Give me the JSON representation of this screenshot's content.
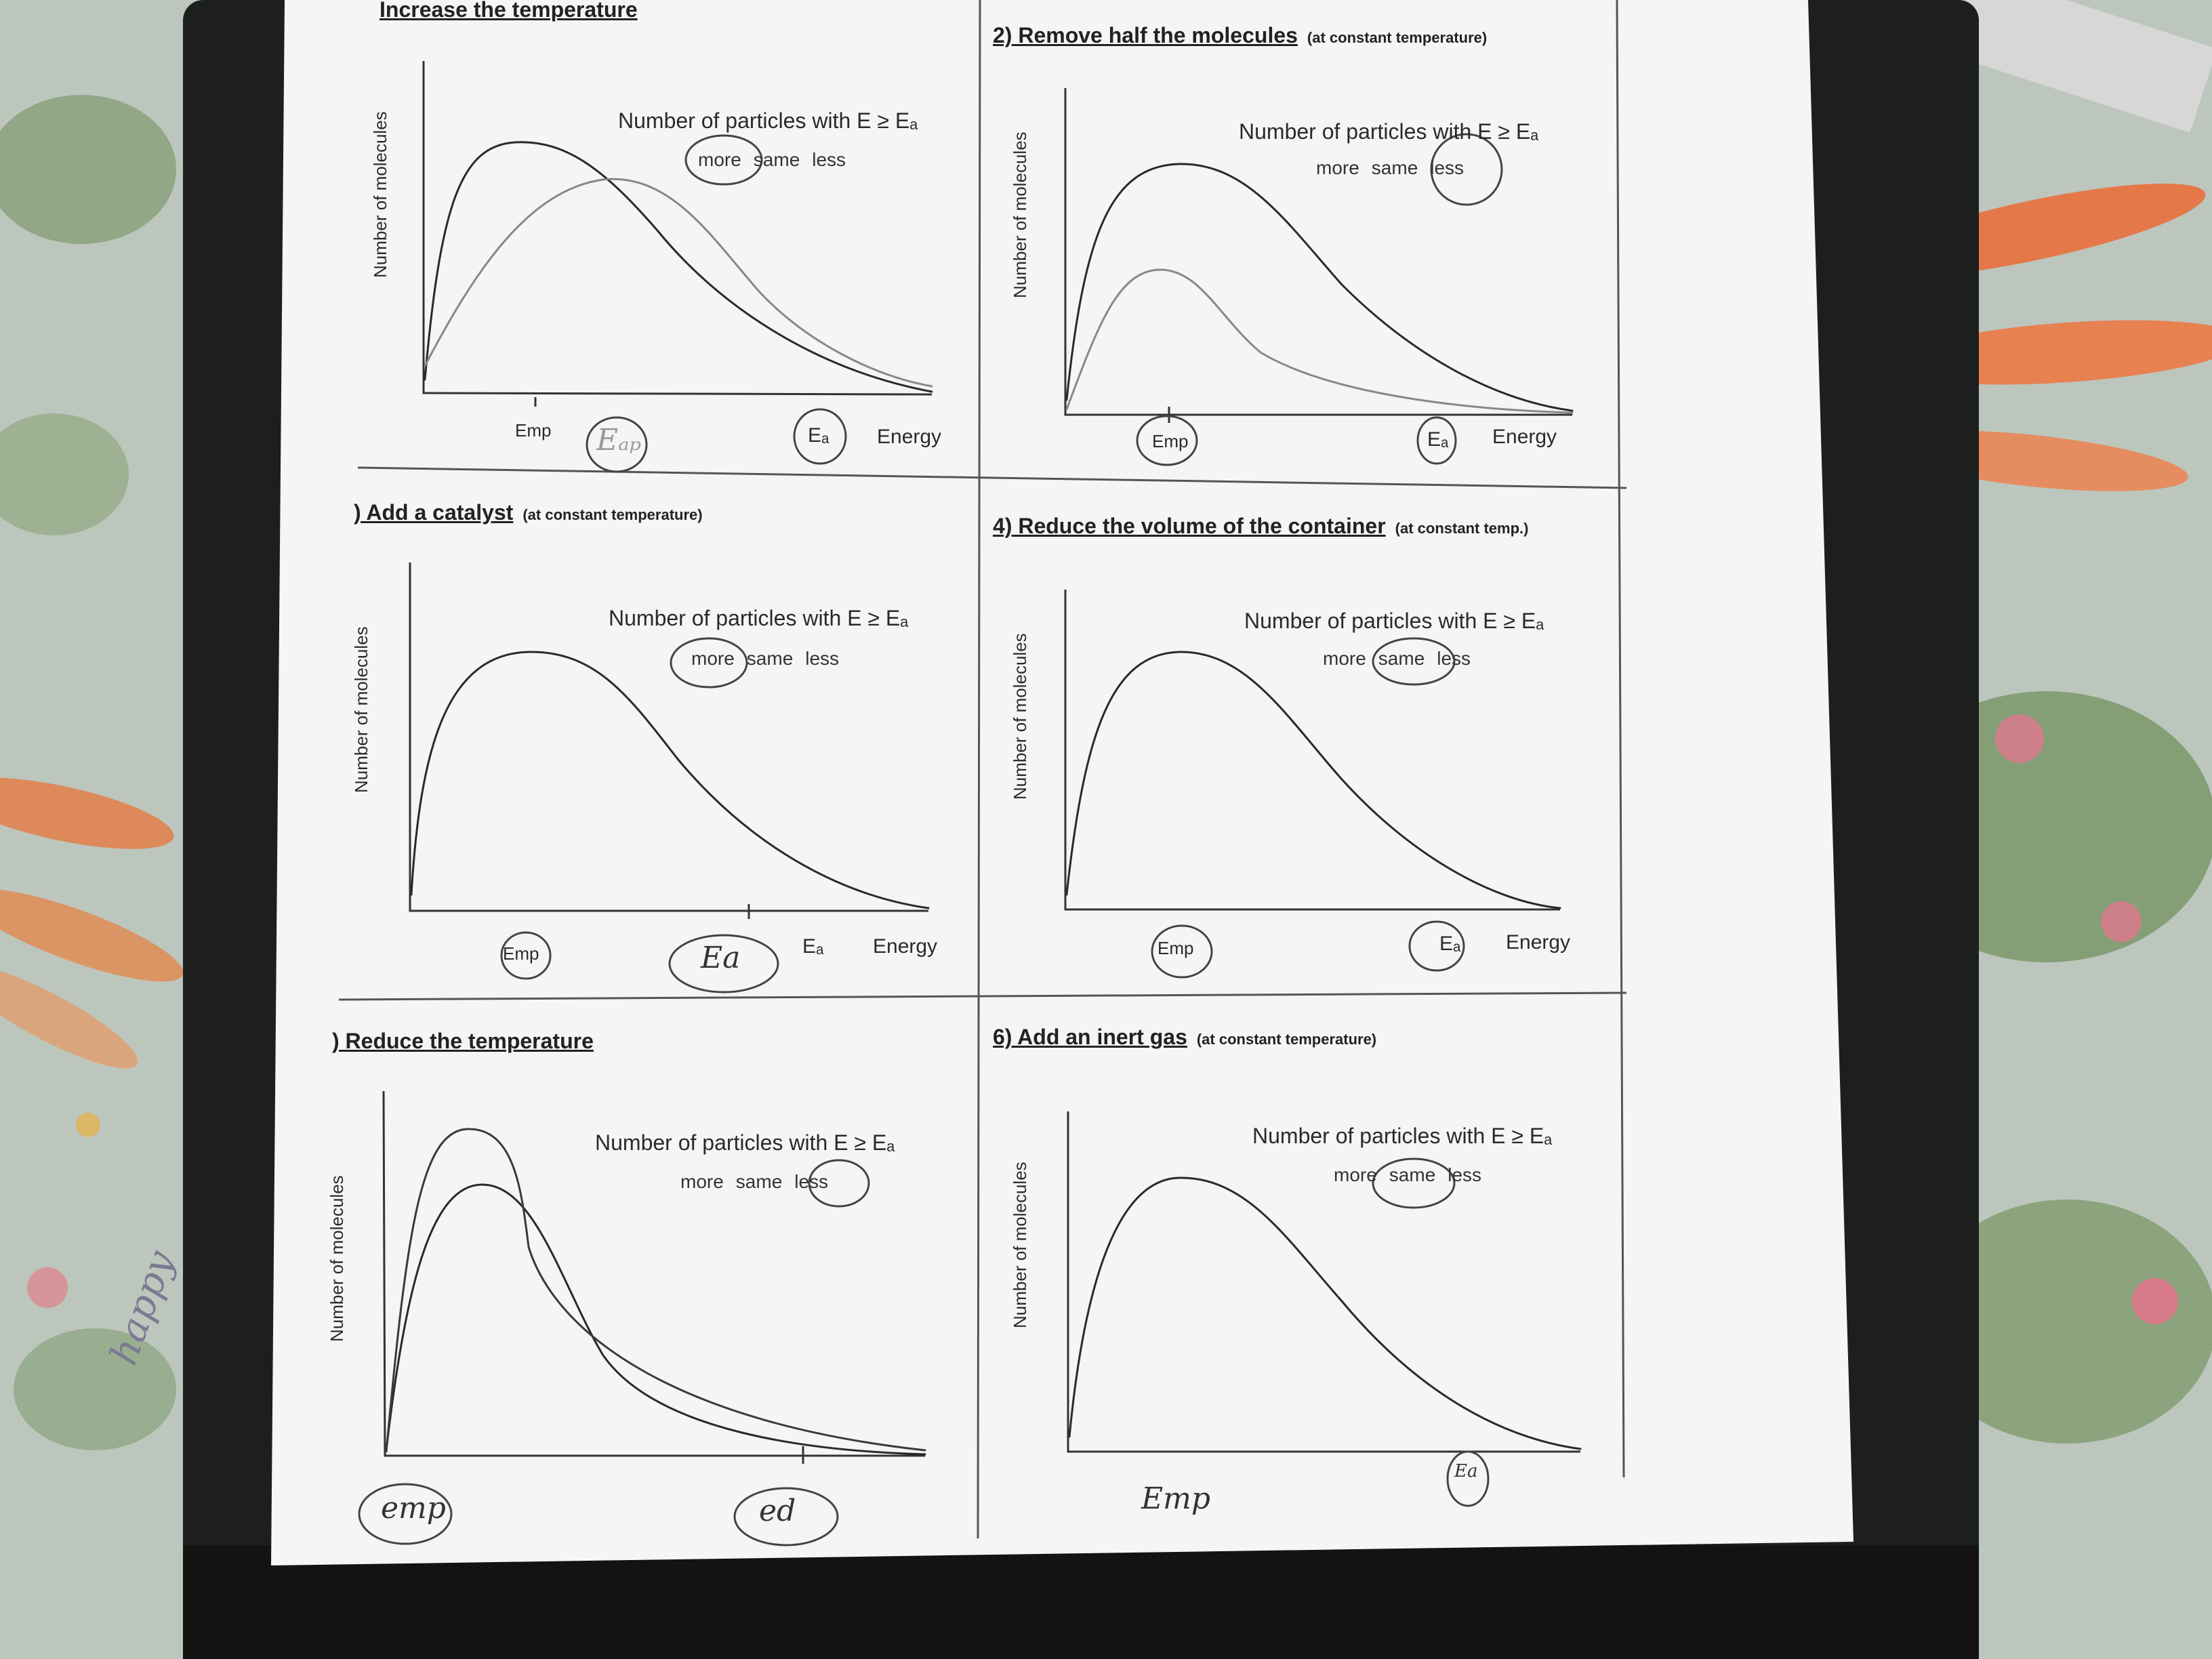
{
  "np_label": "Number of particles with E ≥ Eₐ",
  "choices": [
    "more",
    "same",
    "less"
  ],
  "y_axis_label": "Number of molecules",
  "x_axis_label": "Energy",
  "emp_label": "Emp",
  "ea_label": "Eₐ",
  "panels": [
    {
      "title": "Increase the temperature",
      "subtitle": "",
      "answer": "more",
      "handwritten": [
        "Eₐₚ"
      ]
    },
    {
      "title": "2)  Remove half the molecules",
      "subtitle": "(at constant temperature)",
      "answer": "less",
      "handwritten": []
    },
    {
      "title": ")  Add a catalyst",
      "subtitle": "(at constant temperature)",
      "answer": "more",
      "handwritten": [
        "Ea"
      ]
    },
    {
      "title": "4)  Reduce the volume of the container",
      "subtitle": "(at constant temp.)",
      "answer": "same",
      "handwritten": []
    },
    {
      "title": ")  Reduce the temperature",
      "subtitle": "",
      "answer": "less",
      "handwritten": [
        "emp",
        "ed"
      ]
    },
    {
      "title": "6)  Add an inert gas",
      "subtitle": "(at constant temperature)",
      "answer": "same",
      "handwritten": [
        "Emp",
        "Ea"
      ]
    }
  ],
  "margin_note": "happy",
  "colors": {
    "paper": "#f5f5f3",
    "ink": "#2c2c2c",
    "pencil": "#7a7a7a",
    "carrot": "#e8743a",
    "leaf": "#4e7a3c",
    "binder": "#1d1f1e"
  }
}
